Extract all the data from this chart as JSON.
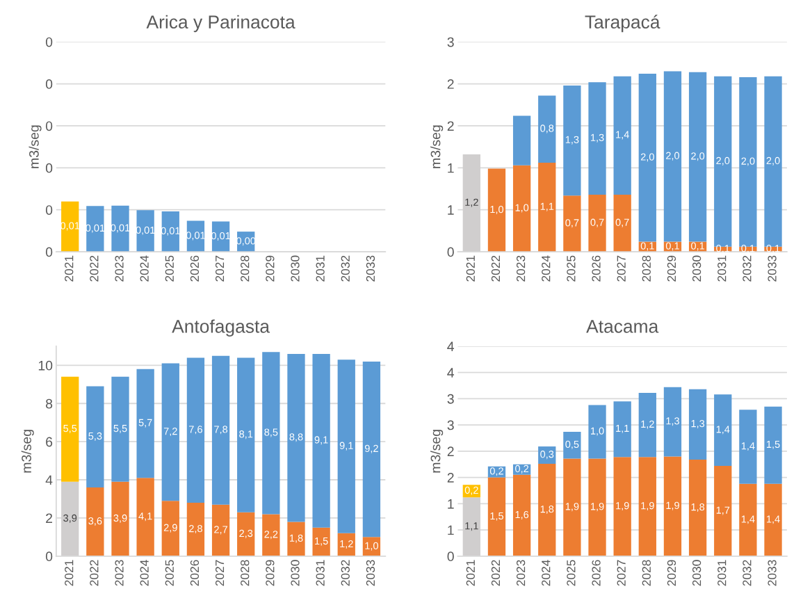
{
  "chart_data": [
    {
      "type": "bar",
      "stacked": true,
      "title": "Arica y Parinacota",
      "ylabel": "m3/seg",
      "grid": "y",
      "categories": [
        "2021",
        "2022",
        "2023",
        "2024",
        "2025",
        "2026",
        "2027",
        "2028",
        "2029",
        "2030",
        "2031",
        "2032",
        "2033"
      ],
      "ylim": [
        0,
        0.05
      ],
      "yticks": [
        {
          "value": 0,
          "label": "0"
        },
        {
          "value": 0.01,
          "label": "0"
        },
        {
          "value": 0.02,
          "label": "0"
        },
        {
          "value": 0.03,
          "label": "0"
        },
        {
          "value": 0.04,
          "label": "0"
        },
        {
          "value": 0.05,
          "label": "0"
        }
      ],
      "series": [
        {
          "color": "#ffc000",
          "values": [
            0.012,
            null,
            null,
            null,
            null,
            null,
            null,
            null,
            null,
            null,
            null,
            null,
            null
          ],
          "value_labels": [
            "0,01",
            null,
            null,
            null,
            null,
            null,
            null,
            null,
            null,
            null,
            null,
            null,
            null
          ]
        },
        {
          "color": "#5b9bd5",
          "values": [
            null,
            0.0109,
            0.011,
            0.0099,
            0.0096,
            0.0074,
            0.0072,
            0.0048,
            null,
            null,
            null,
            null,
            null
          ],
          "value_labels": [
            null,
            "0,01",
            "0,01",
            "0,01",
            "0,01",
            "0,01",
            "0,01",
            "0,00",
            null,
            null,
            null,
            null,
            null
          ]
        }
      ]
    },
    {
      "type": "bar",
      "stacked": true,
      "title": "Tarapacá",
      "ylabel": "m3/seg",
      "grid": "y",
      "categories": [
        "2021",
        "2022",
        "2023",
        "2024",
        "2025",
        "2026",
        "2027",
        "2028",
        "2029",
        "2030",
        "2031",
        "2032",
        "2033"
      ],
      "ylim": [
        0,
        2.5
      ],
      "yticks": [
        {
          "value": 0,
          "label": "0"
        },
        {
          "value": 0.5,
          "label": "1"
        },
        {
          "value": 1,
          "label": "1"
        },
        {
          "value": 1.5,
          "label": "2"
        },
        {
          "value": 2,
          "label": "2"
        },
        {
          "value": 2.5,
          "label": "3"
        }
      ],
      "series": [
        {
          "color": "#d0cece",
          "values": [
            1.16,
            null,
            null,
            null,
            null,
            null,
            null,
            null,
            null,
            null,
            null,
            null,
            null
          ],
          "value_labels": [
            "1,2",
            null,
            null,
            null,
            null,
            null,
            null,
            null,
            null,
            null,
            null,
            null,
            null
          ]
        },
        {
          "color": "#ed7d31",
          "values": [
            null,
            0.99,
            1.03,
            1.06,
            0.67,
            0.68,
            0.68,
            0.12,
            0.12,
            0.12,
            0.06,
            0.06,
            0.06
          ],
          "value_labels": [
            null,
            "1,0",
            "1,0",
            "1,1",
            "0,7",
            "0,7",
            "0,7",
            "0,1",
            "0,1",
            "0,1",
            "0,1",
            "0,1",
            "0,1"
          ]
        },
        {
          "color": "#5b9bd5",
          "values": [
            null,
            null,
            0.59,
            0.8,
            1.31,
            1.34,
            1.41,
            2.0,
            2.03,
            2.02,
            2.03,
            2.02,
            2.03
          ],
          "value_labels": [
            null,
            null,
            null,
            "0,8",
            "1,3",
            "1,3",
            "1,4",
            "2,0",
            "2,0",
            "2,0",
            "2,0",
            "2,0",
            "2,0"
          ]
        }
      ]
    },
    {
      "type": "bar",
      "stacked": true,
      "title": "Antofagasta",
      "ylabel": "m3/seg",
      "grid": "y",
      "categories": [
        "2021",
        "2022",
        "2023",
        "2024",
        "2025",
        "2026",
        "2027",
        "2028",
        "2029",
        "2030",
        "2031",
        "2032",
        "2033"
      ],
      "ylim": [
        0,
        11
      ],
      "yticks": [
        0,
        2,
        4,
        6,
        8,
        10
      ],
      "series": [
        {
          "color": "#d0cece",
          "values": [
            3.9,
            null,
            null,
            null,
            null,
            null,
            null,
            null,
            null,
            null,
            null,
            null,
            null
          ],
          "value_labels": [
            "3,9",
            null,
            null,
            null,
            null,
            null,
            null,
            null,
            null,
            null,
            null,
            null,
            null
          ]
        },
        {
          "color": "#ffc000",
          "values": [
            5.5,
            null,
            null,
            null,
            null,
            null,
            null,
            null,
            null,
            null,
            null,
            null,
            null
          ],
          "value_labels": [
            "5,5",
            null,
            null,
            null,
            null,
            null,
            null,
            null,
            null,
            null,
            null,
            null,
            null
          ]
        },
        {
          "color": "#ed7d31",
          "values": [
            null,
            3.6,
            3.9,
            4.1,
            2.9,
            2.8,
            2.7,
            2.3,
            2.2,
            1.8,
            1.5,
            1.2,
            1.0
          ],
          "value_labels": [
            null,
            "3,6",
            "3,9",
            "4,1",
            "2,9",
            "2,8",
            "2,7",
            "2,3",
            "2,2",
            "1,8",
            "1,5",
            "1,2",
            "1,0"
          ]
        },
        {
          "color": "#5b9bd5",
          "values": [
            null,
            5.3,
            5.5,
            5.7,
            7.2,
            7.6,
            7.8,
            8.1,
            8.5,
            8.8,
            9.1,
            9.1,
            9.2
          ],
          "value_labels": [
            null,
            "5,3",
            "5,5",
            "5,7",
            "7,2",
            "7,6",
            "7,8",
            "8,1",
            "8,5",
            "8,8",
            "9,1",
            "9,1",
            "9,2"
          ]
        }
      ]
    },
    {
      "type": "bar",
      "stacked": true,
      "title": "Atacama",
      "ylabel": "m3/seg",
      "grid": "y",
      "categories": [
        "2021",
        "2022",
        "2023",
        "2024",
        "2025",
        "2026",
        "2027",
        "2028",
        "2029",
        "2030",
        "2031",
        "2032",
        "2033"
      ],
      "ylim": [
        0,
        4
      ],
      "yticks": [
        {
          "value": 0,
          "label": "0"
        },
        {
          "value": 0.5,
          "label": "1"
        },
        {
          "value": 1,
          "label": "1"
        },
        {
          "value": 1.5,
          "label": "2"
        },
        {
          "value": 2,
          "label": "2"
        },
        {
          "value": 2.5,
          "label": "3"
        },
        {
          "value": 3,
          "label": "3"
        },
        {
          "value": 3.5,
          "label": "4"
        },
        {
          "value": 4,
          "label": "4"
        }
      ],
      "series": [
        {
          "color": "#d0cece",
          "values": [
            1.12,
            null,
            null,
            null,
            null,
            null,
            null,
            null,
            null,
            null,
            null,
            null,
            null
          ],
          "value_labels": [
            "1,1",
            null,
            null,
            null,
            null,
            null,
            null,
            null,
            null,
            null,
            null,
            null,
            null
          ]
        },
        {
          "color": "#ffc000",
          "values": [
            0.24,
            null,
            null,
            null,
            null,
            null,
            null,
            null,
            null,
            null,
            null,
            null,
            null
          ],
          "value_labels": [
            "0,2",
            null,
            null,
            null,
            null,
            null,
            null,
            null,
            null,
            null,
            null,
            null,
            null
          ]
        },
        {
          "color": "#ed7d31",
          "values": [
            null,
            1.5,
            1.55,
            1.76,
            1.86,
            1.86,
            1.89,
            1.89,
            1.9,
            1.84,
            1.72,
            1.38,
            1.38
          ],
          "value_labels": [
            null,
            "1,5",
            "1,6",
            "1,8",
            "1,9",
            "1,9",
            "1,9",
            "1,9",
            "1,9",
            "1,8",
            "1,7",
            "1,4",
            "1,4"
          ]
        },
        {
          "color": "#5b9bd5",
          "values": [
            null,
            0.21,
            0.2,
            0.33,
            0.51,
            1.02,
            1.06,
            1.22,
            1.32,
            1.34,
            1.36,
            1.41,
            1.47
          ],
          "value_labels": [
            null,
            "0,2",
            "0,2",
            "0,3",
            "0,5",
            "1,0",
            "1,1",
            "1,2",
            "1,3",
            "1,3",
            "1,4",
            "1,4",
            "1,5"
          ]
        }
      ]
    }
  ]
}
